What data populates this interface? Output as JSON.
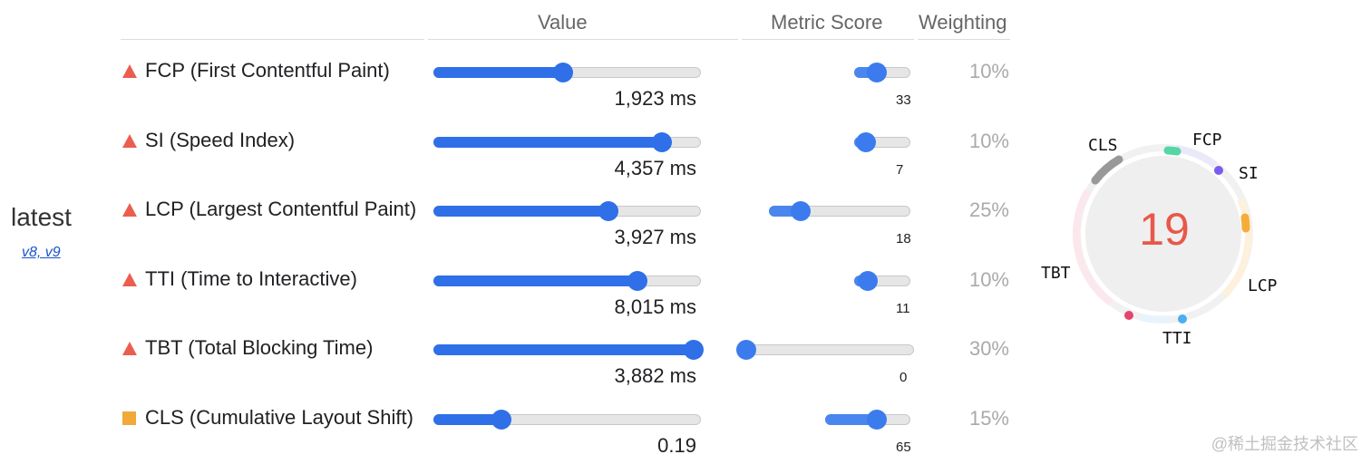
{
  "version": {
    "label": "latest",
    "links": "v8, v9"
  },
  "headers": {
    "value": "Value",
    "metric_score": "Metric Score",
    "weighting": "Weighting"
  },
  "metrics": [
    {
      "name": "FCP (First Contentful Paint)",
      "value": "1,923 ms",
      "score": "33",
      "weight": "10%",
      "marker": "triangle",
      "value_level": 0.48,
      "score_level": 0.38
    },
    {
      "name": "SI (Speed Index)",
      "value": "4,357 ms",
      "score": "7",
      "weight": "10%",
      "marker": "triangle",
      "value_level": 0.85,
      "score_level": 0.2
    },
    {
      "name": "LCP (Largest Contentful Paint)",
      "value": "3,927 ms",
      "score": "18",
      "weight": "25%",
      "marker": "triangle",
      "value_level": 0.65,
      "score_level": 0.22
    },
    {
      "name": "TTI (Time to Interactive)",
      "value": "8,015 ms",
      "score": "11",
      "weight": "10%",
      "marker": "triangle",
      "value_level": 0.76,
      "score_level": 0.22
    },
    {
      "name": "TBT (Total Blocking Time)",
      "value": "3,882 ms",
      "score": "0",
      "weight": "30%",
      "marker": "triangle",
      "value_level": 0.97,
      "score_level": 0.0
    },
    {
      "name": "CLS (Cumulative Layout Shift)",
      "value": "0.19",
      "score": "65",
      "weight": "15%",
      "marker": "square",
      "value_level": 0.25,
      "score_level": 0.6
    }
  ],
  "gauge": {
    "score": "19",
    "labels": {
      "fcp": "FCP",
      "si": "SI",
      "lcp": "LCP",
      "tti": "TTI",
      "tbt": "TBT",
      "cls": "CLS"
    },
    "colors": {
      "score": "#e8584a",
      "fcp": "#55d6a5",
      "si": "#7b5cf0",
      "lcp": "#f4ad3a",
      "tti": "#4aaef0",
      "tbt": "#e3456d",
      "cls": "#999999"
    }
  },
  "watermark": "@稀土掘金技术社区"
}
